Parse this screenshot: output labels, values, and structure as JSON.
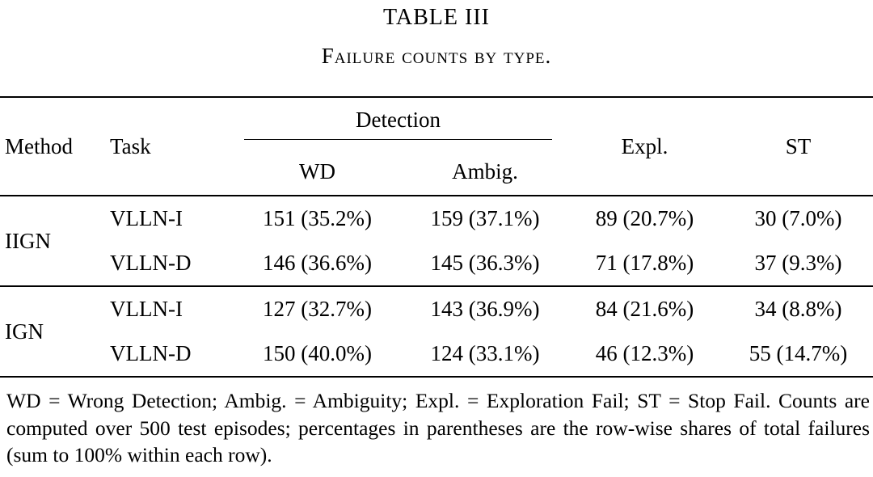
{
  "title": "TABLE III",
  "caption": "Failure counts by type.",
  "table": {
    "headers": {
      "method": "Method",
      "task": "Task",
      "detection": "Detection",
      "wd": "WD",
      "ambig": "Ambig.",
      "expl": "Expl.",
      "st": "ST"
    },
    "groups": [
      {
        "method": "IIGN",
        "rows": [
          {
            "task": "VLLN-I",
            "wd": "151 (35.2%)",
            "ambig": "159 (37.1%)",
            "expl": "89 (20.7%)",
            "st": "30 (7.0%)"
          },
          {
            "task": "VLLN-D",
            "wd": "146 (36.6%)",
            "ambig": "145 (36.3%)",
            "expl": "71 (17.8%)",
            "st": "37 (9.3%)"
          }
        ]
      },
      {
        "method": "IGN",
        "rows": [
          {
            "task": "VLLN-I",
            "wd": "127 (32.7%)",
            "ambig": "143 (36.9%)",
            "expl": "84 (21.6%)",
            "st": "34 (8.8%)"
          },
          {
            "task": "VLLN-D",
            "wd": "150 (40.0%)",
            "ambig": "124 (33.1%)",
            "expl": "46 (12.3%)",
            "st": "55 (14.7%)"
          }
        ]
      }
    ]
  },
  "footnote": "WD = Wrong Detection; Ambig. = Ambiguity; Expl. = Exploration Fail; ST = Stop Fail. Counts are computed over 500 test episodes; percentages in parentheses are the row-wise shares of total failures (sum to 100% within each row)."
}
